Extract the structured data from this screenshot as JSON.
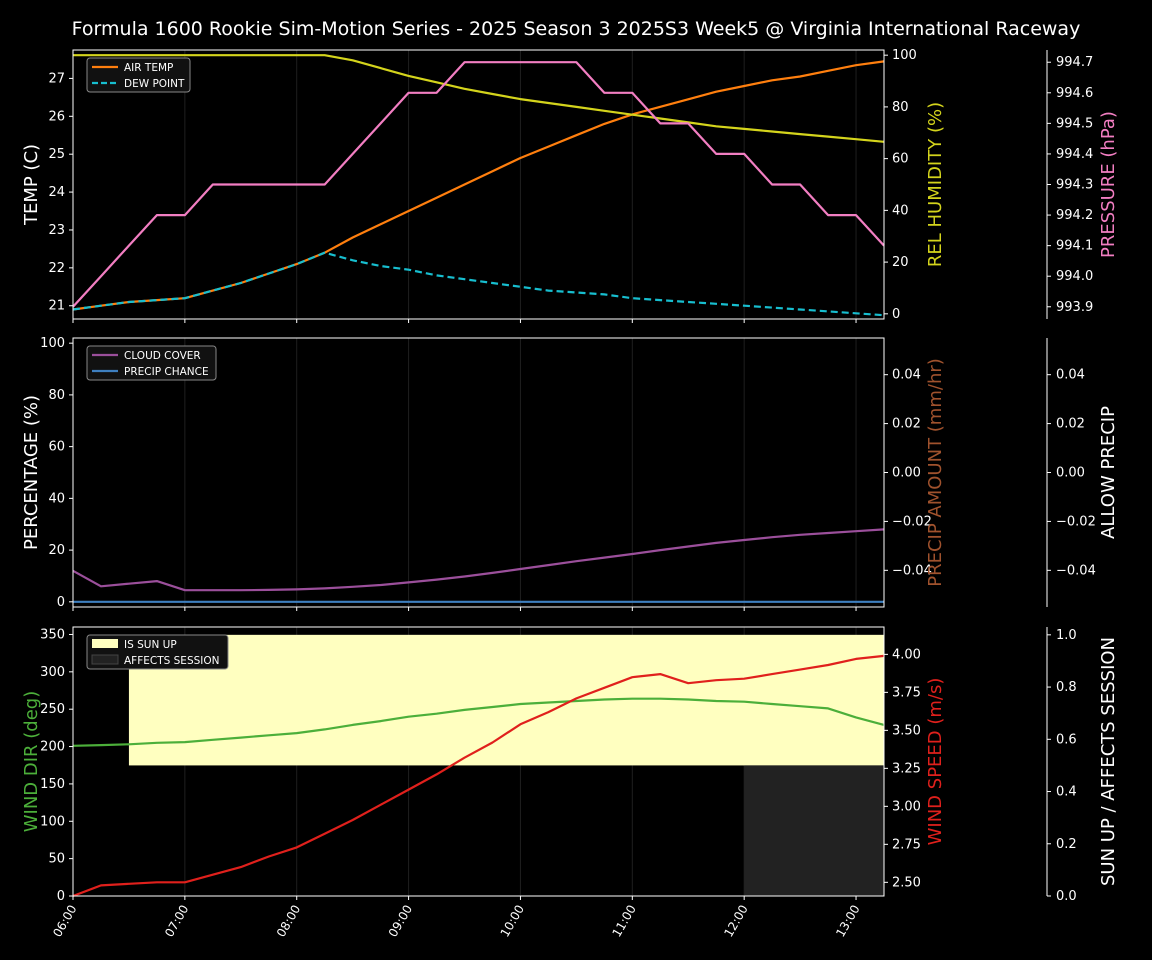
{
  "title": "Formula 1600 Rookie Sim-Motion Series - 2025 Season 3 2025S3 Week5 @ Virginia International Raceway",
  "colors": {
    "air_temp": "#ff7f0e",
    "dew_point": "#17becf",
    "humidity": "#d4d41c",
    "pressure": "#f27ec2",
    "cloud": "#9b4f9b",
    "precip_chance": "#3e7fbf",
    "precip_amount": "#a0522d",
    "wind_dir": "#4caf3a",
    "wind_speed": "#e0201c",
    "sun_up": "#ffffc0",
    "affects": "#222222"
  },
  "x_ticks": [
    "06:00",
    "07:00",
    "08:00",
    "09:00",
    "10:00",
    "11:00",
    "12:00",
    "13:00"
  ],
  "chart_data": [
    {
      "type": "line",
      "panel": "temperature",
      "x": [
        "06:00",
        "06:15",
        "06:30",
        "06:45",
        "07:00",
        "07:15",
        "07:30",
        "07:45",
        "08:00",
        "08:15",
        "08:30",
        "08:45",
        "09:00",
        "09:15",
        "09:30",
        "09:45",
        "10:00",
        "10:15",
        "10:30",
        "10:45",
        "11:00",
        "11:15",
        "11:30",
        "11:45",
        "12:00",
        "12:15",
        "12:30",
        "12:45",
        "13:00",
        "13:15"
      ],
      "ylabel": "TEMP (C)",
      "ylim": [
        20.65,
        27.75
      ],
      "yticks": [
        21,
        22,
        23,
        24,
        25,
        26,
        27
      ],
      "y2label": "REL HUMIDITY (%)",
      "y2lim": [
        -2,
        102
      ],
      "y2ticks": [
        0,
        20,
        40,
        60,
        80,
        100
      ],
      "y3label": "PRESSURE (hPa)",
      "y3lim": [
        993.86,
        994.74
      ],
      "y3ticks": [
        "993.9",
        "994.0",
        "994.1",
        "994.2",
        "994.3",
        "994.4",
        "994.5",
        "994.6",
        "994.7"
      ],
      "legend": [
        "AIR TEMP",
        "DEW POINT"
      ],
      "series": [
        {
          "name": "AIR TEMP",
          "axis": "left",
          "values": [
            20.9,
            21.0,
            21.1,
            21.15,
            21.2,
            21.4,
            21.6,
            21.85,
            22.1,
            22.4,
            22.8,
            23.15,
            23.5,
            23.85,
            24.2,
            24.55,
            24.9,
            25.2,
            25.5,
            25.8,
            26.05,
            26.25,
            26.45,
            26.65,
            26.8,
            26.95,
            27.05,
            27.2,
            27.35,
            27.45
          ]
        },
        {
          "name": "DEW POINT",
          "axis": "left",
          "values": [
            20.9,
            21.0,
            21.1,
            21.15,
            21.2,
            21.4,
            21.6,
            21.85,
            22.1,
            22.4,
            22.2,
            22.05,
            21.95,
            21.8,
            21.7,
            21.6,
            21.5,
            21.4,
            21.35,
            21.3,
            21.2,
            21.15,
            21.1,
            21.05,
            21.0,
            20.95,
            20.9,
            20.85,
            20.8,
            20.75
          ]
        },
        {
          "name": "REL HUMIDITY",
          "axis": "right1",
          "values": [
            100,
            100,
            100,
            100,
            100,
            100,
            100,
            100,
            100,
            100,
            98,
            95,
            92,
            89.5,
            87,
            85,
            83,
            81.5,
            80,
            78.5,
            77,
            75.5,
            74,
            72.5,
            71.5,
            70.5,
            69.5,
            68.5,
            67.5,
            66.5
          ]
        },
        {
          "name": "PRESSURE",
          "axis": "right2",
          "values": [
            993.9,
            994.0,
            994.1,
            994.2,
            994.2,
            994.3,
            994.3,
            994.3,
            994.3,
            994.3,
            994.4,
            994.5,
            994.6,
            994.6,
            994.7,
            994.7,
            994.7,
            994.7,
            994.7,
            994.6,
            994.6,
            994.5,
            994.5,
            994.4,
            994.4,
            994.3,
            994.3,
            994.2,
            994.2,
            994.1
          ]
        }
      ]
    },
    {
      "type": "line",
      "panel": "precipitation",
      "x": [
        "06:00",
        "06:15",
        "06:30",
        "06:45",
        "07:00",
        "07:15",
        "07:30",
        "07:45",
        "08:00",
        "08:15",
        "08:30",
        "08:45",
        "09:00",
        "09:15",
        "09:30",
        "09:45",
        "10:00",
        "10:15",
        "10:30",
        "10:45",
        "11:00",
        "11:15",
        "11:30",
        "11:45",
        "12:00",
        "12:15",
        "12:30",
        "12:45",
        "13:00",
        "13:15"
      ],
      "ylabel": "PERCENTAGE (%)",
      "ylim": [
        -2,
        102
      ],
      "yticks": [
        0,
        20,
        40,
        60,
        80,
        100
      ],
      "y2label": "PRECIP AMOUNT (mm/hr)",
      "y2lim": [
        -0.055,
        0.055
      ],
      "y2ticks": [
        "−0.04",
        "−0.02",
        "0.00",
        "0.02",
        "0.04"
      ],
      "y3label": "ALLOW PRECIP",
      "y3lim": [
        -0.055,
        0.055
      ],
      "y3ticks": [
        "−0.04",
        "−0.02",
        "0.00",
        "0.02",
        "0.04"
      ],
      "legend": [
        "CLOUD COVER",
        "PRECIP CHANCE"
      ],
      "series": [
        {
          "name": "CLOUD COVER",
          "axis": "left",
          "values": [
            12,
            6,
            7,
            8,
            4.5,
            4.5,
            4.5,
            4.6,
            4.8,
            5.2,
            5.8,
            6.5,
            7.5,
            8.6,
            9.8,
            11.2,
            12.7,
            14.2,
            15.7,
            17.1,
            18.5,
            20.0,
            21.4,
            22.8,
            23.9,
            25.0,
            25.9,
            26.6,
            27.3,
            28.0
          ]
        },
        {
          "name": "PRECIP CHANCE",
          "axis": "left",
          "values": [
            0,
            0,
            0,
            0,
            0,
            0,
            0,
            0,
            0,
            0,
            0,
            0,
            0,
            0,
            0,
            0,
            0,
            0,
            0,
            0,
            0,
            0,
            0,
            0,
            0,
            0,
            0,
            0,
            0,
            0
          ]
        }
      ]
    },
    {
      "type": "line",
      "panel": "wind",
      "x": [
        "06:00",
        "06:15",
        "06:30",
        "06:45",
        "07:00",
        "07:15",
        "07:30",
        "07:45",
        "08:00",
        "08:15",
        "08:30",
        "08:45",
        "09:00",
        "09:15",
        "09:30",
        "09:45",
        "10:00",
        "10:15",
        "10:30",
        "10:45",
        "11:00",
        "11:15",
        "11:30",
        "11:45",
        "12:00",
        "12:15",
        "12:30",
        "12:45",
        "13:00",
        "13:15"
      ],
      "ylabel": "WIND DIR (deg)",
      "ylim": [
        0,
        360
      ],
      "yticks": [
        0,
        50,
        100,
        150,
        200,
        250,
        300,
        350
      ],
      "y2label": "WIND SPEED (m/s)",
      "y2lim": [
        2.41,
        4.18
      ],
      "y2ticks": [
        "2.50",
        "2.75",
        "3.00",
        "3.25",
        "3.50",
        "3.75",
        "4.00"
      ],
      "y3label": "SUN UP / AFFECTS SESSION",
      "y3lim": [
        0,
        1.03
      ],
      "y3ticks": [
        "0.0",
        "0.2",
        "0.4",
        "0.6",
        "0.8",
        "1.0"
      ],
      "legend": [
        "IS SUN UP",
        "AFFECTS SESSION"
      ],
      "sun_up": {
        "start": "06:30",
        "end": "13:15",
        "value": 1.0
      },
      "affects_session": {
        "start": "12:00",
        "end": "13:15",
        "value": 0.5
      },
      "series": [
        {
          "name": "WIND DIR",
          "axis": "left",
          "values": [
            201,
            202,
            203,
            205,
            206,
            209,
            212,
            215,
            218,
            223,
            229,
            234,
            240,
            244,
            249,
            253,
            257,
            259,
            261,
            263,
            264,
            264,
            263,
            261,
            260,
            257,
            254,
            251,
            239,
            229
          ]
        },
        {
          "name": "WIND SPEED",
          "axis": "right1",
          "values": [
            2.41,
            2.48,
            2.49,
            2.5,
            2.5,
            2.55,
            2.6,
            2.67,
            2.73,
            2.82,
            2.91,
            3.01,
            3.11,
            3.21,
            3.32,
            3.42,
            3.54,
            3.62,
            3.71,
            3.78,
            3.85,
            3.87,
            3.81,
            3.83,
            3.84,
            3.87,
            3.9,
            3.93,
            3.97,
            3.99
          ]
        }
      ]
    }
  ]
}
